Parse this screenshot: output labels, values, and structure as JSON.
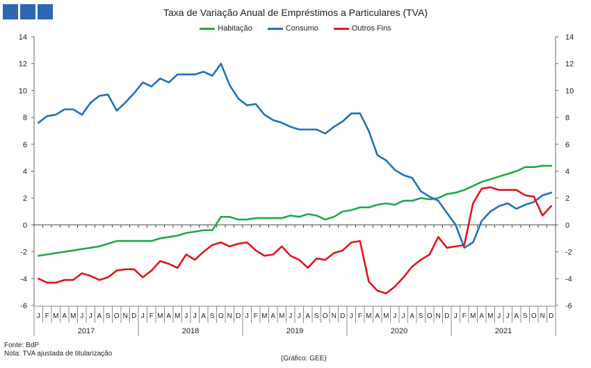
{
  "logo": {
    "icon": "bdp-logo-squares",
    "color": "#2f67b5"
  },
  "chart_data": {
    "type": "line",
    "title": "Taxa de Variação Anual de Empréstimos  a Particulares (TVA)",
    "xlabel": "",
    "ylabel": "",
    "ylim": [
      -6,
      14
    ],
    "yticks": [
      -6,
      -4,
      -2,
      0,
      2,
      4,
      6,
      8,
      10,
      12,
      14
    ],
    "grid": false,
    "dual_y_axis": true,
    "legend_position": "top-center",
    "month_labels": [
      "J",
      "F",
      "M",
      "A",
      "M",
      "J",
      "J",
      "A",
      "S",
      "O",
      "N",
      "D"
    ],
    "years": [
      "2017",
      "2018",
      "2019",
      "2020",
      "2021"
    ],
    "series": [
      {
        "name": "Habitação",
        "color": "#22a64a",
        "values": [
          -2.3,
          -2.2,
          -2.1,
          -2.0,
          -1.9,
          -1.8,
          -1.7,
          -1.6,
          -1.4,
          -1.2,
          -1.2,
          -1.2,
          -1.2,
          -1.2,
          -1.0,
          -0.9,
          -0.8,
          -0.6,
          -0.5,
          -0.4,
          -0.4,
          0.6,
          0.6,
          0.4,
          0.4,
          0.5,
          0.5,
          0.5,
          0.5,
          0.7,
          0.6,
          0.8,
          0.7,
          0.4,
          0.6,
          1.0,
          1.1,
          1.3,
          1.3,
          1.5,
          1.6,
          1.5,
          1.8,
          1.8,
          2.0,
          1.9,
          2.0,
          2.3,
          2.4,
          2.6,
          2.9,
          3.2,
          3.4,
          3.6,
          3.8,
          4.0,
          4.3,
          4.3,
          4.4,
          4.4
        ]
      },
      {
        "name": "Consumo",
        "color": "#1f70b8",
        "values": [
          7.6,
          8.1,
          8.2,
          8.6,
          8.6,
          8.2,
          9.1,
          9.6,
          9.7,
          8.5,
          9.1,
          9.8,
          10.6,
          10.3,
          10.9,
          10.6,
          11.2,
          11.2,
          11.2,
          11.4,
          11.1,
          12.0,
          10.4,
          9.4,
          8.9,
          9.0,
          8.2,
          7.8,
          7.6,
          7.3,
          7.1,
          7.1,
          7.1,
          6.8,
          7.3,
          7.7,
          8.3,
          8.3,
          7.0,
          5.2,
          4.8,
          4.1,
          3.7,
          3.5,
          2.5,
          2.1,
          1.8,
          0.9,
          0.0,
          -1.7,
          -1.3,
          0.3,
          1.0,
          1.4,
          1.6,
          1.2,
          1.5,
          1.7,
          2.2,
          2.4
        ]
      },
      {
        "name": "Outros Fins",
        "color": "#e3121b",
        "values": [
          -4.0,
          -4.3,
          -4.3,
          -4.1,
          -4.1,
          -3.6,
          -3.8,
          -4.1,
          -3.9,
          -3.4,
          -3.3,
          -3.3,
          -3.9,
          -3.4,
          -2.7,
          -2.9,
          -3.2,
          -2.2,
          -2.6,
          -2.0,
          -1.5,
          -1.3,
          -1.6,
          -1.4,
          -1.3,
          -1.9,
          -2.3,
          -2.2,
          -1.6,
          -2.3,
          -2.6,
          -3.2,
          -2.5,
          -2.6,
          -2.1,
          -1.9,
          -1.3,
          -1.2,
          -4.2,
          -4.9,
          -5.1,
          -4.6,
          -3.9,
          -3.1,
          -2.6,
          -2.2,
          -0.9,
          -1.7,
          -1.6,
          -1.5,
          1.6,
          2.7,
          2.8,
          2.6,
          2.6,
          2.6,
          2.2,
          2.1,
          0.7,
          1.4
        ]
      }
    ]
  },
  "footer": {
    "source": "Fonte: BdP",
    "note": "Nota: TVA  ajustada de titularização",
    "credit": "(Gráfico: GEE)"
  }
}
